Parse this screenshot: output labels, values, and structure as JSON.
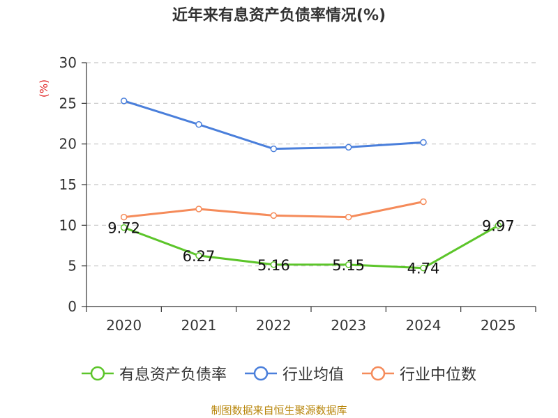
{
  "title": "近年来有息资产负债率情况(%)",
  "source_note": "制图数据来自恒生聚源数据库",
  "chart_data": {
    "type": "line",
    "title": "近年来有息资产负债率情况(%)",
    "ylabel": "(%)",
    "xlabel": "",
    "categories": [
      "2020",
      "2021",
      "2022",
      "2023",
      "2024",
      "2025"
    ],
    "ylim": [
      0,
      30
    ],
    "yticks": [
      0,
      5,
      10,
      15,
      20,
      25,
      30
    ],
    "grid": true,
    "legend_position": "bottom",
    "series": [
      {
        "name": "有息资产负债率",
        "color": "#5cc52a",
        "values": [
          9.72,
          6.27,
          5.16,
          5.15,
          4.74,
          9.97
        ],
        "labels": [
          "9.72",
          "6.27",
          "5.16",
          "5.15",
          "4.74",
          "9.97"
        ]
      },
      {
        "name": "行业均值",
        "color": "#4a7fdb",
        "values": [
          25.3,
          22.4,
          19.4,
          19.6,
          20.2,
          null
        ]
      },
      {
        "name": "行业中位数",
        "color": "#f58b5a",
        "values": [
          11.0,
          12.0,
          11.2,
          11.0,
          12.9,
          null
        ]
      }
    ]
  }
}
